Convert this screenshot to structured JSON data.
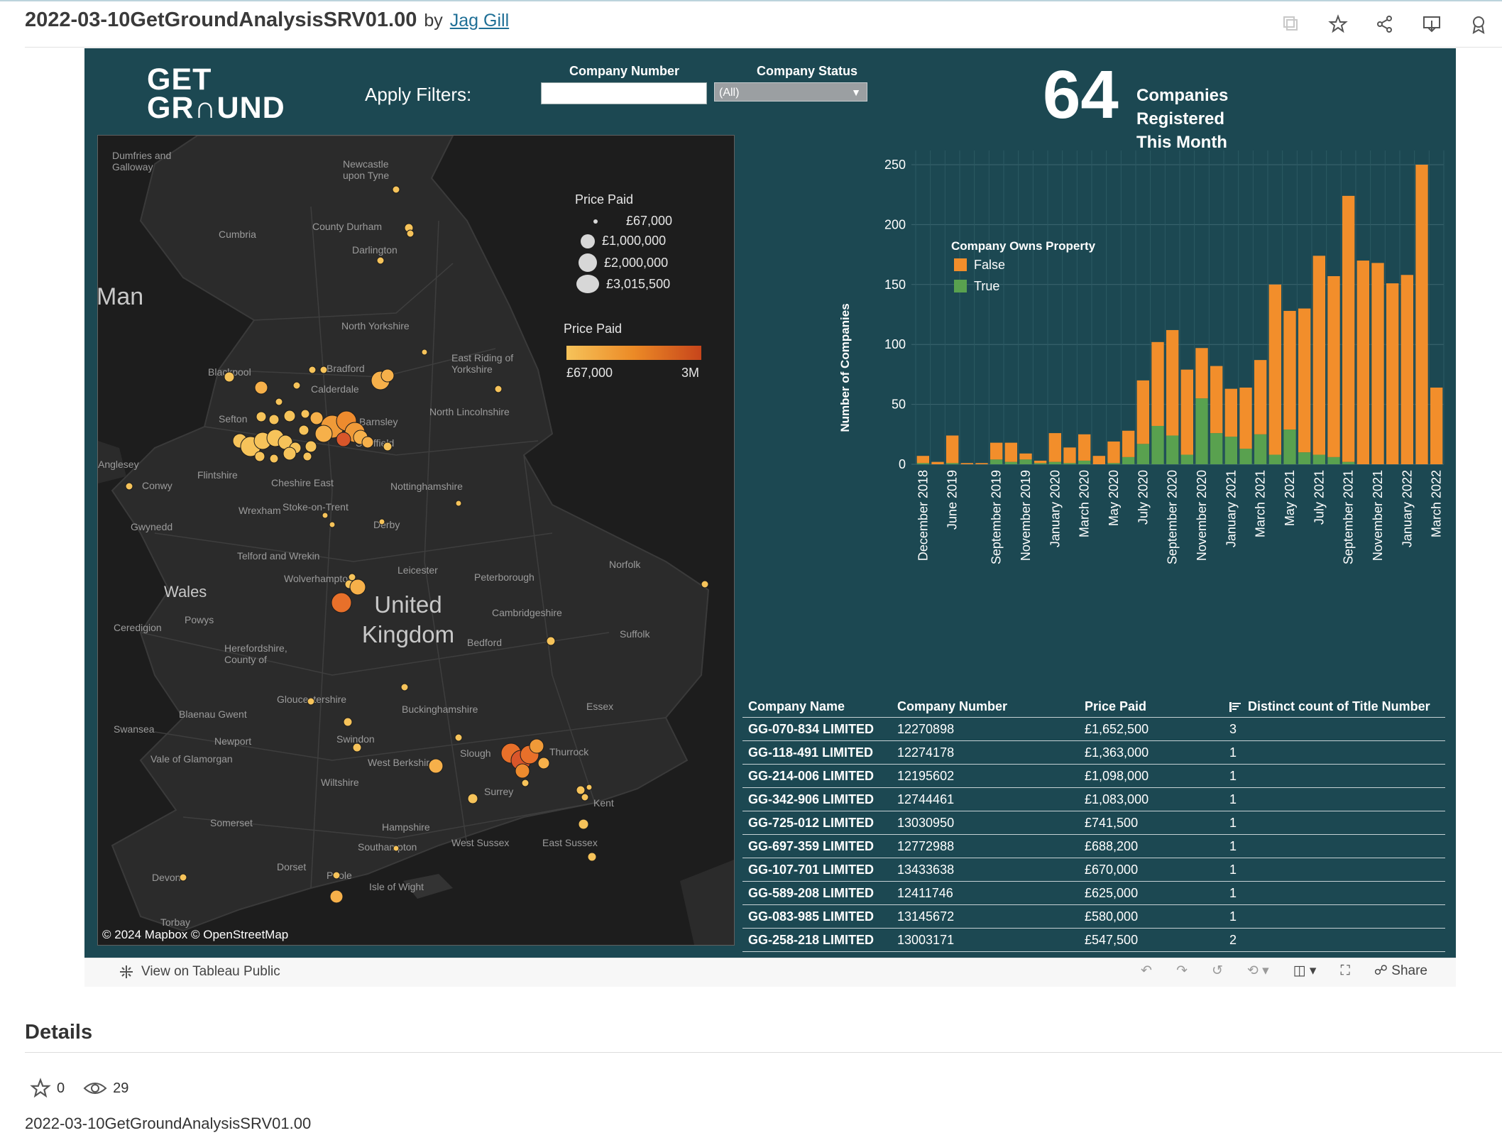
{
  "header": {
    "title": "2022-03-10GetGroundAnalysisSRV01.00",
    "by": "by",
    "author": "Jag Gill",
    "icons": [
      "copy-icon",
      "star-icon",
      "share-icon",
      "download-icon",
      "badge-icon"
    ]
  },
  "dashboard": {
    "logo_line1": "GET",
    "logo_line2": "GR∩UND",
    "apply_filters": "Apply Filters:",
    "company_number_label": "Company Number",
    "company_number_value": "",
    "company_status_label": "Company Status",
    "company_status_value": "(All)",
    "kpi_value": "64",
    "kpi_label_line1": "Companies Registered",
    "kpi_label_line2": "This Month"
  },
  "map": {
    "labels": {
      "dumfries": "Dumfries and Galloway",
      "newcastle": "Newcastle upon Tyne",
      "cumbria": "Cumbria",
      "county_durham": "County Durham",
      "darlington": "Darlington",
      "man": "Man",
      "north_yorkshire": "North Yorkshire",
      "east_riding": "East Riding of Yorkshire",
      "blackpool": "Blackpool",
      "bradford": "Bradford",
      "calderdale": "Calderdale",
      "north_lincolnshire": "North Lincolnshire",
      "sefton": "Sefton",
      "barnsley": "Barnsley",
      "sheffield": "Sheffield",
      "anglesey": "Anglesey",
      "conwy": "Conwy",
      "flintshire": "Flintshire",
      "cheshire_east": "Cheshire East",
      "nottinghamshire": "Nottinghamshire",
      "wrexham": "Wrexham",
      "stoke": "Stoke-on-Trent",
      "gwynedd": "Gwynedd",
      "derby": "Derby",
      "telford": "Telford and Wrekin",
      "norfolk": "Norfolk",
      "leicester": "Leicester",
      "wolverhampton": "Wolverhampton",
      "peterborough": "Peterborough",
      "wales": "Wales",
      "uk_line1": "United",
      "uk_line2": "Kingdom",
      "cambridgeshire": "Cambridgeshire",
      "powys": "Powys",
      "ceredigion": "Ceredigion",
      "suffolk": "Suffolk",
      "bedford": "Bedford",
      "herefordshire": "Herefordshire, County of",
      "gloucestershire": "Gloucestershire",
      "buckinghamshire": "Buckinghamshire",
      "essex": "Essex",
      "blaenau": "Blaenau Gwent",
      "swansea": "Swansea",
      "newport": "Newport",
      "swindon": "Swindon",
      "vale": "Vale of Glamorgan",
      "west_berkshire": "West Berkshire",
      "slough": "Slough",
      "thurrock": "Thurrock",
      "wiltshire": "Wiltshire",
      "surrey": "Surrey",
      "kent": "Kent",
      "somerset": "Somerset",
      "hampshire": "Hampshire",
      "west_sussex": "West Sussex",
      "east_sussex": "East Sussex",
      "southampton": "Southampton",
      "dorset": "Dorset",
      "poole": "Poole",
      "isle_of_wight": "Isle of Wight",
      "devon": "Devon",
      "torbay": "Torbay"
    },
    "size_legend_title": "Price Paid",
    "size_legend": [
      "£67,000",
      "£1,000,000",
      "£2,000,000",
      "£3,015,500"
    ],
    "color_legend_title": "Price Paid",
    "color_legend_min": "£67,000",
    "color_legend_max": "3M",
    "copyright": "© 2024 Mapbox  © OpenStreetMap"
  },
  "chart_data": {
    "type": "bar",
    "stacked": true,
    "ylabel": "Number of Companies",
    "ylim": [
      0,
      250
    ],
    "yticks": [
      0,
      50,
      100,
      150,
      200,
      250
    ],
    "legend_title": "Company Owns Property",
    "legend_position": "top-left",
    "x_tick_labels": [
      "December 2018",
      "June 2019",
      "September 2019",
      "November 2019",
      "January 2020",
      "March 2020",
      "May 2020",
      "July 2020",
      "September 2020",
      "November 2020",
      "January 2021",
      "March 2021",
      "May 2021",
      "July 2021",
      "September 2021",
      "November 2021",
      "January 2022",
      "March 2022"
    ],
    "categories": [
      "Dec 2018",
      "Jan 2019",
      "Jun 2019",
      "Jul 2019",
      "Aug 2019",
      "Sep 2019",
      "Oct 2019",
      "Nov 2019",
      "Dec 2019",
      "Jan 2020",
      "Feb 2020",
      "Mar 2020",
      "Apr 2020",
      "May 2020",
      "Jun 2020",
      "Jul 2020",
      "Aug 2020",
      "Sep 2020",
      "Oct 2020",
      "Nov 2020",
      "Dec 2020",
      "Jan 2021",
      "Feb 2021",
      "Mar 2021",
      "Apr 2021",
      "May 2021",
      "Jun 2021",
      "Jul 2021",
      "Aug 2021",
      "Sep 2021",
      "Oct 2021",
      "Nov 2021",
      "Dec 2021",
      "Jan 2022",
      "Feb 2022",
      "Mar 2022"
    ],
    "series": [
      {
        "name": "False",
        "color": "#f28e2b",
        "values": [
          6,
          2,
          23,
          1,
          1,
          14,
          16,
          5,
          2,
          24,
          13,
          22,
          7,
          18,
          22,
          53,
          70,
          88,
          71,
          42,
          56,
          40,
          51,
          62,
          142,
          99,
          120,
          166,
          151,
          222,
          170,
          168,
          151,
          158,
          250,
          64
        ]
      },
      {
        "name": "True",
        "color": "#59a14f",
        "values": [
          1,
          0,
          1,
          0,
          0,
          4,
          2,
          4,
          1,
          2,
          1,
          3,
          0,
          1,
          6,
          17,
          32,
          24,
          8,
          55,
          26,
          23,
          13,
          25,
          8,
          29,
          10,
          8,
          6,
          2,
          0,
          0,
          0,
          0,
          0,
          0
        ]
      }
    ]
  },
  "table": {
    "headers": [
      "Company Name",
      "Company Number",
      "Price Paid",
      "Distinct count of Title Number"
    ],
    "rows": [
      [
        "GG-070-834 LIMITED",
        "12270898",
        "£1,652,500",
        "3"
      ],
      [
        "GG-118-491 LIMITED",
        "12274178",
        "£1,363,000",
        "1"
      ],
      [
        "GG-214-006 LIMITED",
        "12195602",
        "£1,098,000",
        "1"
      ],
      [
        "GG-342-906 LIMITED",
        "12744461",
        "£1,083,000",
        "1"
      ],
      [
        "GG-725-012 LIMITED",
        "13030950",
        "£741,500",
        "1"
      ],
      [
        "GG-697-359 LIMITED",
        "12772988",
        "£688,200",
        "1"
      ],
      [
        "GG-107-701 LIMITED",
        "13433638",
        "£670,000",
        "1"
      ],
      [
        "GG-589-208 LIMITED",
        "12411746",
        "£625,000",
        "1"
      ],
      [
        "GG-083-985 LIMITED",
        "13145672",
        "£580,000",
        "1"
      ],
      [
        "GG-258-218 LIMITED",
        "13003171",
        "£547,500",
        "2"
      ]
    ]
  },
  "toolbar": {
    "view_on": "View on Tableau Public",
    "share": "Share"
  },
  "details": {
    "title": "Details",
    "favorites": "0",
    "views": "29",
    "cut_text": "2022-03-10GetGroundAnalysisSRV01.00"
  }
}
